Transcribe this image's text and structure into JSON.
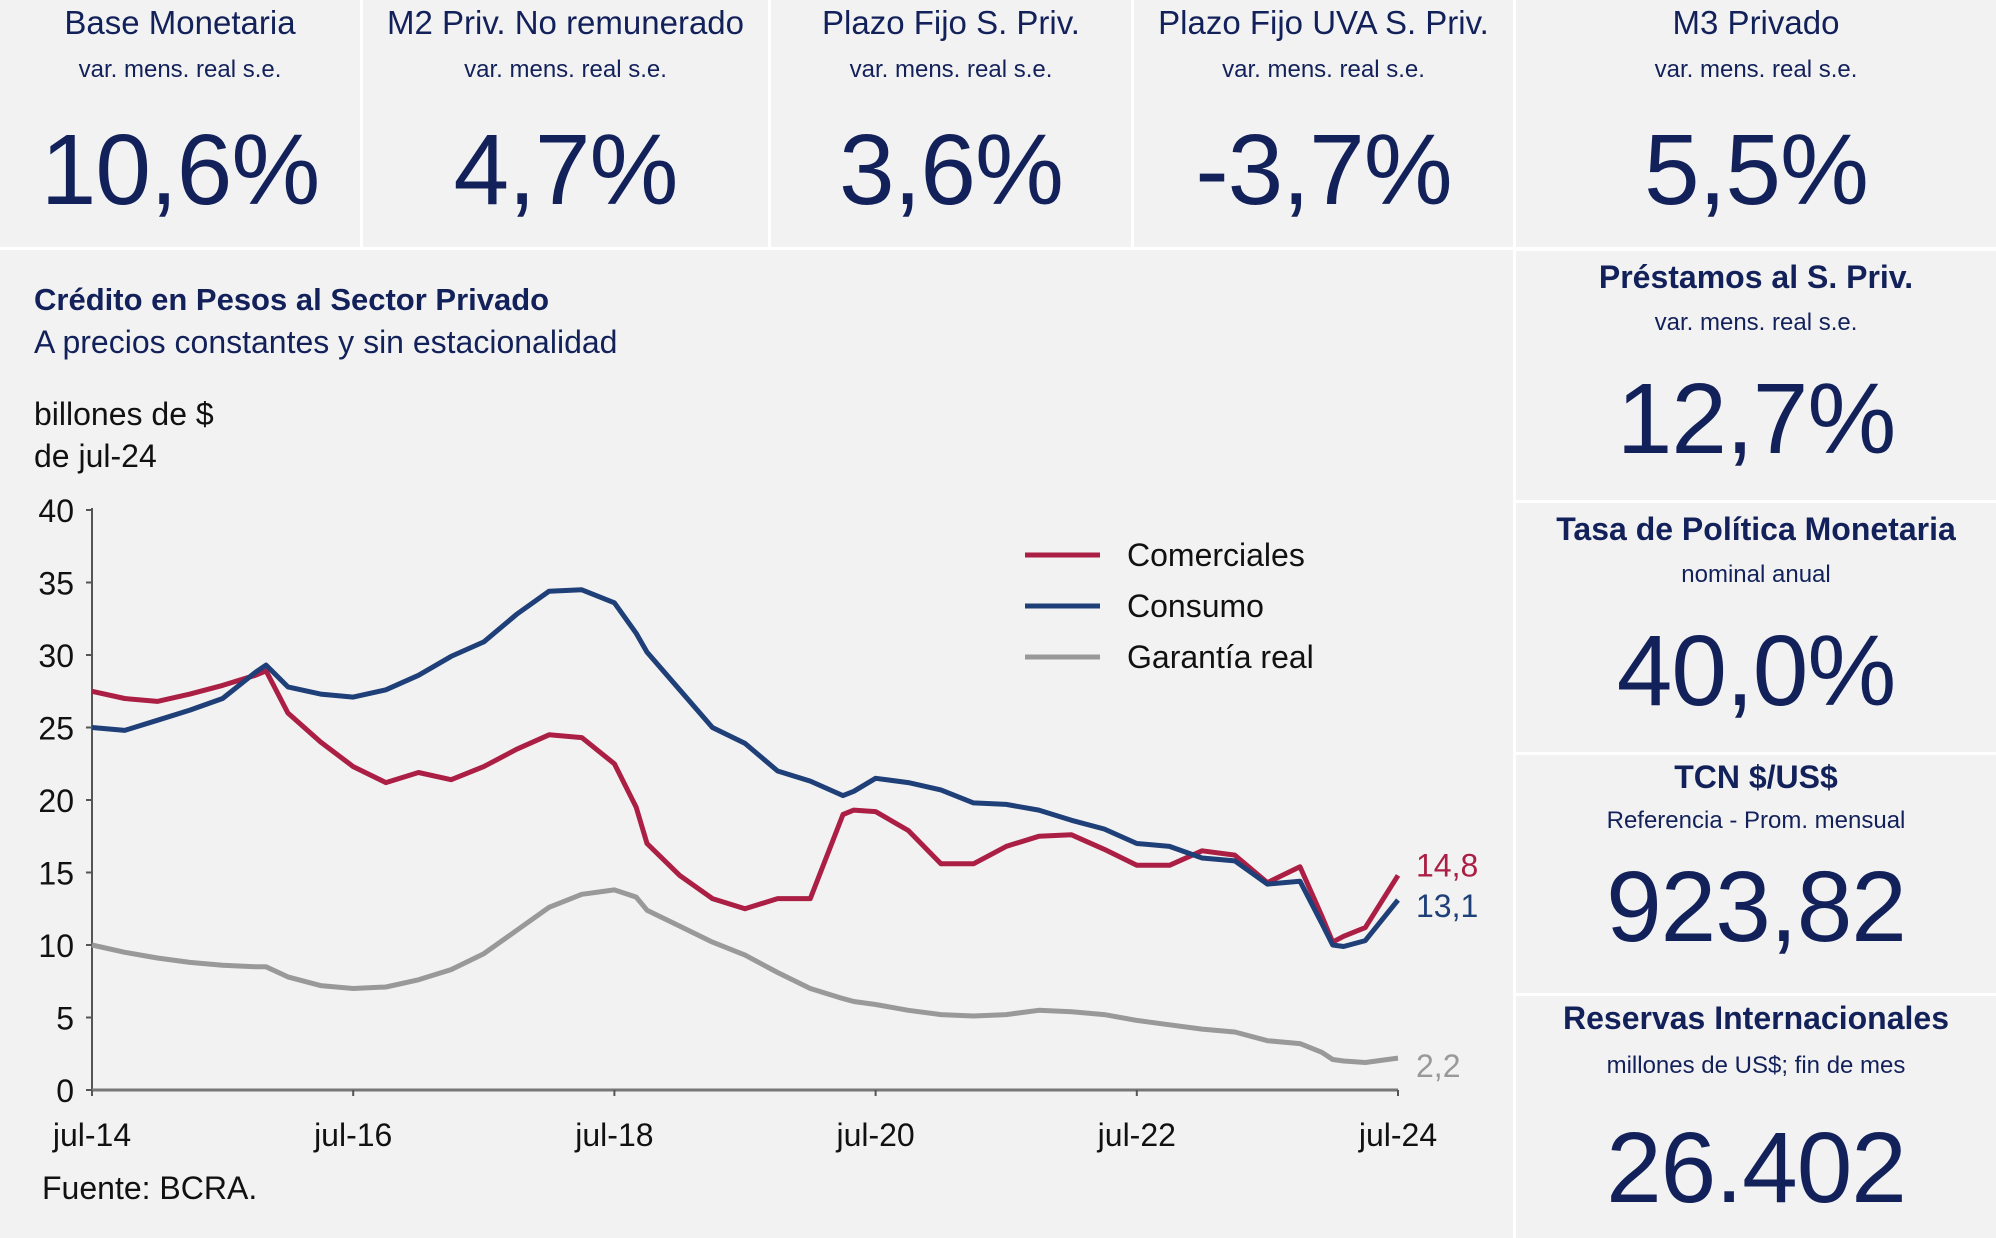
{
  "kpis_top": [
    {
      "title": "Base Monetaria",
      "subtitle": "var. mens. real s.e.",
      "value": "10,6%"
    },
    {
      "title": "M2 Priv. No remunerado",
      "subtitle": "var. mens. real s.e.",
      "value": "4,7%"
    },
    {
      "title": "Plazo Fijo S. Priv.",
      "subtitle": "var. mens. real s.e.",
      "value": "3,6%"
    },
    {
      "title": "Plazo Fijo UVA S. Priv.",
      "subtitle": "var. mens. real s.e.",
      "value": "-3,7%"
    },
    {
      "title": "M3 Privado",
      "subtitle": "var. mens. real s.e.",
      "value": "5,5%"
    }
  ],
  "kpis_side": [
    {
      "title": "Préstamos al S. Priv.",
      "subtitle": "var. mens. real s.e.",
      "value": "12,7%"
    },
    {
      "title": "Tasa de Política Monetaria",
      "subtitle": "nominal anual",
      "value": "40,0%"
    },
    {
      "title": "TCN $/US$",
      "subtitle": "Referencia - Prom. mensual",
      "value": "923,82"
    },
    {
      "title": "Reservas Internacionales",
      "subtitle": "millones de US$; fin de mes",
      "value": "26.402"
    }
  ],
  "colors": {
    "text": "#13215a",
    "panel_bg": "#f2f2f2",
    "comerciales": "#ab1f45",
    "consumo": "#1f3f78",
    "garantia": "#999999"
  },
  "chart_data": {
    "type": "line",
    "title": "Crédito en Pesos al Sector Privado",
    "subtitle": "A precios constantes y sin estacionalidad",
    "ylabel_line1": "billones de $",
    "ylabel_line2": "de jul-24",
    "xlabel": "",
    "ylim": [
      0,
      40
    ],
    "yticks": [
      0,
      5,
      10,
      15,
      20,
      25,
      30,
      35,
      40
    ],
    "xlim": [
      "jul-14",
      "jul-24"
    ],
    "xticks": [
      "jul-14",
      "jul-16",
      "jul-18",
      "jul-20",
      "jul-22",
      "jul-24"
    ],
    "x_months_from_jul14": [
      0,
      3,
      6,
      9,
      12,
      15,
      16,
      18,
      21,
      24,
      27,
      30,
      33,
      36,
      39,
      42,
      45,
      48,
      50,
      51,
      54,
      57,
      60,
      63,
      66,
      69,
      70,
      72,
      75,
      78,
      81,
      84,
      87,
      90,
      93,
      96,
      99,
      102,
      105,
      108,
      111,
      113,
      114,
      115,
      117,
      120
    ],
    "series": [
      {
        "name": "Comerciales",
        "color_key": "comerciales",
        "end_label": "14,8",
        "values": [
          27.5,
          27.0,
          26.8,
          27.3,
          27.9,
          28.6,
          28.9,
          26.0,
          24.0,
          22.3,
          21.2,
          21.9,
          21.4,
          22.3,
          23.5,
          24.5,
          24.3,
          22.5,
          19.5,
          17.0,
          14.8,
          13.2,
          12.5,
          13.2,
          13.2,
          19.0,
          19.3,
          19.2,
          17.9,
          15.6,
          15.6,
          16.8,
          17.5,
          17.6,
          16.6,
          15.5,
          15.5,
          16.5,
          16.2,
          14.3,
          15.4,
          12.0,
          10.2,
          10.6,
          11.2,
          14.8
        ]
      },
      {
        "name": "Consumo",
        "color_key": "consumo",
        "end_label": "13,1",
        "values": [
          25.0,
          24.8,
          25.5,
          26.2,
          27.0,
          28.8,
          29.3,
          27.8,
          27.3,
          27.1,
          27.6,
          28.6,
          29.9,
          30.9,
          32.8,
          34.4,
          34.5,
          33.6,
          31.5,
          30.2,
          27.6,
          25.0,
          23.9,
          22.0,
          21.3,
          20.3,
          20.6,
          21.5,
          21.2,
          20.7,
          19.8,
          19.7,
          19.3,
          18.6,
          18.0,
          17.0,
          16.8,
          16.0,
          15.8,
          14.2,
          14.4,
          11.5,
          10.0,
          9.9,
          10.3,
          13.1
        ]
      },
      {
        "name": "Garantía real",
        "color_key": "garantia",
        "end_label": "2,2",
        "values": [
          10.0,
          9.5,
          9.1,
          8.8,
          8.6,
          8.5,
          8.5,
          7.8,
          7.2,
          7.0,
          7.1,
          7.6,
          8.3,
          9.4,
          11.0,
          12.6,
          13.5,
          13.8,
          13.3,
          12.4,
          11.3,
          10.2,
          9.3,
          8.1,
          7.0,
          6.3,
          6.1,
          5.9,
          5.5,
          5.2,
          5.1,
          5.2,
          5.5,
          5.4,
          5.2,
          4.8,
          4.5,
          4.2,
          4.0,
          3.4,
          3.2,
          2.6,
          2.1,
          2.0,
          1.9,
          2.2
        ]
      }
    ],
    "legend": {
      "placement": "top-right",
      "entries": [
        "Comerciales",
        "Consumo",
        "Garantía real"
      ]
    },
    "grid": false,
    "source": "Fuente: BCRA."
  }
}
